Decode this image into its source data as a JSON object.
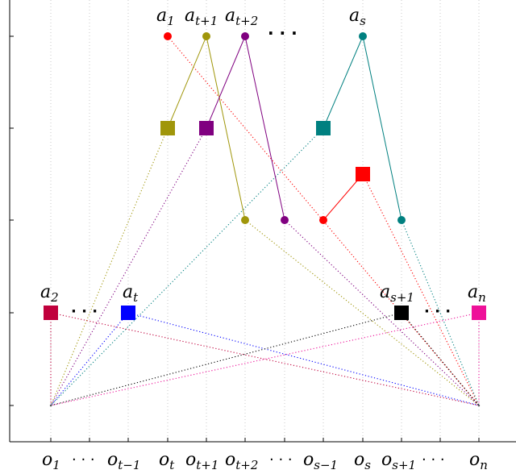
{
  "chart_data": {
    "type": "diagram",
    "top_labels": [
      {
        "id": "a1",
        "base": "a",
        "sub": "1"
      },
      {
        "id": "at1",
        "base": "a",
        "sub": "t+1"
      },
      {
        "id": "at2",
        "base": "a",
        "sub": "t+2"
      },
      {
        "id": "as",
        "base": "a",
        "sub": "s"
      }
    ],
    "row_labels": [
      {
        "id": "a2",
        "base": "a",
        "sub": "2"
      },
      {
        "id": "at",
        "base": "a",
        "sub": "t"
      },
      {
        "id": "as1",
        "base": "a",
        "sub": "s+1"
      },
      {
        "id": "an",
        "base": "a",
        "sub": "n"
      }
    ],
    "dots_text": "· · ·",
    "x_ticks": [
      {
        "base": "o",
        "sub": "1"
      },
      {
        "base": "",
        "sub": "",
        "dots": "· · ·"
      },
      {
        "base": "o",
        "sub": "t−1"
      },
      {
        "base": "o",
        "sub": "t"
      },
      {
        "base": "o",
        "sub": "t+1"
      },
      {
        "base": "o",
        "sub": "t+2"
      },
      {
        "base": "",
        "sub": "",
        "dots": "· · ·"
      },
      {
        "base": "o",
        "sub": "s−1"
      },
      {
        "base": "o",
        "sub": "s"
      },
      {
        "base": "o",
        "sub": "s+1"
      },
      {
        "base": "",
        "sub": "",
        "dots": "· · ·"
      },
      {
        "base": "o",
        "sub": "n"
      }
    ],
    "colors": {
      "red": "#ff0000",
      "olive": "#a0960a",
      "purple": "#800080",
      "teal": "#008080",
      "crimson": "#c0003c",
      "blue": "#0000ff",
      "black": "#000000",
      "magenta": "#ee1199",
      "grid": "#c8c8c8"
    }
  }
}
